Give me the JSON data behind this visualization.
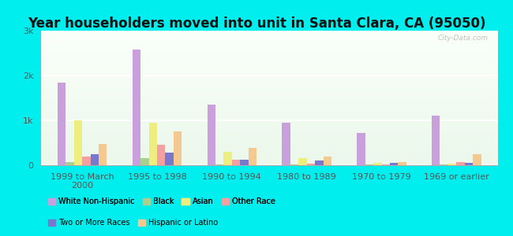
{
  "title": "Year householders moved into unit in Santa Clara, CA (95050)",
  "background_color": "#00EEEE",
  "categories": [
    "1999 to March\n2000",
    "1995 to 1998",
    "1990 to 1994",
    "1980 to 1989",
    "1970 to 1979",
    "1969 or earlier"
  ],
  "series_order": [
    "White Non-Hispanic",
    "Black",
    "Asian",
    "Other Race",
    "Two or More Races",
    "Hispanic or Latino"
  ],
  "series": {
    "White Non-Hispanic": {
      "color": "#c9a0dc",
      "values": [
        1850,
        2580,
        1350,
        950,
        720,
        1100
      ]
    },
    "Black": {
      "color": "#a8d090",
      "values": [
        65,
        155,
        18,
        18,
        25,
        18
      ]
    },
    "Asian": {
      "color": "#eeee80",
      "values": [
        1000,
        940,
        300,
        150,
        50,
        28
      ]
    },
    "Other Race": {
      "color": "#f4a0a0",
      "values": [
        200,
        450,
        130,
        28,
        10,
        75
      ]
    },
    "Two or More Races": {
      "color": "#7878cc",
      "values": [
        240,
        280,
        120,
        100,
        50,
        60
      ]
    },
    "Hispanic or Latino": {
      "color": "#f5c890",
      "values": [
        480,
        760,
        380,
        200,
        75,
        240
      ]
    }
  },
  "ylim": [
    0,
    3000
  ],
  "yticks": [
    0,
    1000,
    2000,
    3000
  ],
  "ytick_labels": [
    "0",
    "1k",
    "2k",
    "3k"
  ],
  "watermark": "City-Data.com",
  "title_fontsize": 12,
  "tick_fontsize": 8,
  "legend_order": [
    "White Non-Hispanic",
    "Black",
    "Asian",
    "Other Race",
    "Two or More Races",
    "Hispanic or Latino"
  ]
}
